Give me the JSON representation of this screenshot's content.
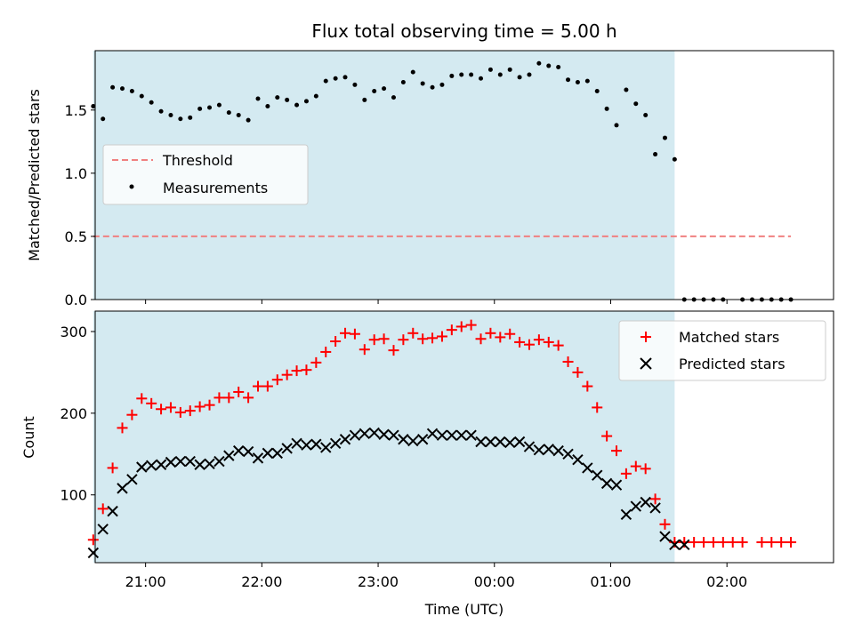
{
  "figure": {
    "title": "Flux total observing time = 5.00 h",
    "xlabel": "Time (UTC)"
  },
  "chart_data": [
    {
      "type": "scatter",
      "ylabel": "Matched/Predicted stars",
      "xlim": [
        "20:34",
        "02:55"
      ],
      "ylim": [
        0,
        1.97
      ],
      "yticks": [
        0.0,
        0.5,
        1.0,
        1.5
      ],
      "ytick_labels": [
        "0.0",
        "0.5",
        "1.0",
        "1.5"
      ],
      "shaded_interval": {
        "start": "20:33",
        "end": "01:33",
        "color": "#d4eaf1"
      },
      "legend": {
        "placement": "center-left"
      },
      "series": [
        {
          "name": "Threshold",
          "kind": "dashed-line",
          "color": "#f08080",
          "x": [
            "20:33",
            "02:33"
          ],
          "y": [
            0.5,
            0.5
          ]
        },
        {
          "name": "Measurements",
          "kind": "dots",
          "color": "#000000",
          "x": [
            "20:33",
            "20:38",
            "20:43",
            "20:48",
            "20:53",
            "20:58",
            "21:03",
            "21:08",
            "21:13",
            "21:18",
            "21:23",
            "21:28",
            "21:33",
            "21:38",
            "21:43",
            "21:48",
            "21:53",
            "21:58",
            "22:03",
            "22:08",
            "22:13",
            "22:18",
            "22:23",
            "22:28",
            "22:33",
            "22:38",
            "22:43",
            "22:48",
            "22:53",
            "22:58",
            "23:03",
            "23:08",
            "23:13",
            "23:18",
            "23:23",
            "23:28",
            "23:33",
            "23:38",
            "23:43",
            "23:48",
            "23:53",
            "23:58",
            "00:03",
            "00:08",
            "00:13",
            "00:18",
            "00:23",
            "00:28",
            "00:33",
            "00:38",
            "00:43",
            "00:48",
            "00:53",
            "00:58",
            "01:03",
            "01:08",
            "01:13",
            "01:18",
            "01:23",
            "01:28",
            "01:33",
            "01:38",
            "01:43",
            "01:48",
            "01:53",
            "01:58",
            "02:08",
            "02:13",
            "02:18",
            "02:23",
            "02:28",
            "02:33"
          ],
          "y": [
            1.53,
            1.43,
            1.68,
            1.67,
            1.65,
            1.61,
            1.56,
            1.49,
            1.46,
            1.43,
            1.44,
            1.51,
            1.52,
            1.54,
            1.48,
            1.46,
            1.42,
            1.59,
            1.53,
            1.6,
            1.58,
            1.54,
            1.57,
            1.61,
            1.73,
            1.75,
            1.76,
            1.7,
            1.58,
            1.65,
            1.67,
            1.6,
            1.72,
            1.8,
            1.71,
            1.68,
            1.7,
            1.77,
            1.78,
            1.78,
            1.75,
            1.82,
            1.78,
            1.82,
            1.76,
            1.78,
            1.87,
            1.85,
            1.84,
            1.74,
            1.72,
            1.73,
            1.65,
            1.51,
            1.38,
            1.66,
            1.55,
            1.46,
            1.15,
            1.28,
            1.11,
            0.0,
            0.0,
            0.0,
            0.0,
            0.0,
            0.0,
            0.0,
            0.0,
            0.0,
            0.0,
            0.0
          ]
        }
      ]
    },
    {
      "type": "scatter",
      "ylabel": "Count",
      "xlim": [
        "20:34",
        "02:55"
      ],
      "ylim": [
        17,
        325
      ],
      "yticks": [
        100,
        200,
        300
      ],
      "ytick_labels": [
        "100",
        "200",
        "300"
      ],
      "xticks": [
        "21:00",
        "22:00",
        "23:00",
        "00:00",
        "01:00",
        "02:00"
      ],
      "xtick_labels": [
        "21:00",
        "22:00",
        "23:00",
        "00:00",
        "01:00",
        "02:00"
      ],
      "shaded_interval": {
        "start": "20:33",
        "end": "01:33",
        "color": "#d4eaf1"
      },
      "legend": {
        "placement": "top-right"
      },
      "series": [
        {
          "name": "Matched stars",
          "kind": "plus",
          "color": "#ff0000",
          "x": [
            "20:33",
            "20:38",
            "20:43",
            "20:48",
            "20:53",
            "20:58",
            "21:03",
            "21:08",
            "21:13",
            "21:18",
            "21:23",
            "21:28",
            "21:33",
            "21:38",
            "21:43",
            "21:48",
            "21:53",
            "21:58",
            "22:03",
            "22:08",
            "22:13",
            "22:18",
            "22:23",
            "22:28",
            "22:33",
            "22:38",
            "22:43",
            "22:48",
            "22:53",
            "22:58",
            "23:03",
            "23:08",
            "23:13",
            "23:18",
            "23:23",
            "23:28",
            "23:33",
            "23:38",
            "23:43",
            "23:48",
            "23:53",
            "23:58",
            "00:03",
            "00:08",
            "00:13",
            "00:18",
            "00:23",
            "00:28",
            "00:33",
            "00:38",
            "00:43",
            "00:48",
            "00:53",
            "00:58",
            "01:03",
            "01:08",
            "01:13",
            "01:18",
            "01:23",
            "01:28",
            "01:33",
            "01:38",
            "01:43",
            "01:48",
            "01:53",
            "01:58",
            "02:03",
            "02:08",
            "02:18",
            "02:23",
            "02:28",
            "02:33"
          ],
          "y": [
            45,
            83,
            133,
            182,
            198,
            218,
            212,
            205,
            207,
            201,
            203,
            208,
            210,
            219,
            219,
            226,
            219,
            233,
            233,
            241,
            247,
            252,
            253,
            262,
            275,
            288,
            298,
            297,
            278,
            290,
            291,
            277,
            290,
            298,
            291,
            292,
            294,
            302,
            306,
            308,
            291,
            298,
            293,
            297,
            287,
            284,
            290,
            287,
            283,
            263,
            250,
            233,
            207,
            172,
            154,
            126,
            135,
            132,
            95,
            64,
            42,
            42,
            42,
            42,
            42,
            42,
            42,
            42,
            42,
            42,
            42,
            42
          ]
        },
        {
          "name": "Predicted stars",
          "kind": "x",
          "color": "#000000",
          "x": [
            "20:33",
            "20:38",
            "20:43",
            "20:48",
            "20:53",
            "20:58",
            "21:03",
            "21:08",
            "21:13",
            "21:18",
            "21:23",
            "21:28",
            "21:33",
            "21:38",
            "21:43",
            "21:48",
            "21:53",
            "21:58",
            "22:03",
            "22:08",
            "22:13",
            "22:18",
            "22:23",
            "22:28",
            "22:33",
            "22:38",
            "22:43",
            "22:48",
            "22:53",
            "22:58",
            "23:03",
            "23:08",
            "23:13",
            "23:18",
            "23:23",
            "23:28",
            "23:33",
            "23:38",
            "23:43",
            "23:48",
            "23:53",
            "23:58",
            "00:03",
            "00:08",
            "00:13",
            "00:18",
            "00:23",
            "00:28",
            "00:33",
            "00:38",
            "00:43",
            "00:48",
            "00:53",
            "00:58",
            "01:03",
            "01:08",
            "01:13",
            "01:18",
            "01:23",
            "01:28",
            "01:33",
            "01:38"
          ],
          "y": [
            29,
            58,
            80,
            108,
            119,
            134,
            136,
            137,
            140,
            141,
            141,
            137,
            138,
            141,
            148,
            154,
            153,
            145,
            151,
            151,
            157,
            163,
            161,
            162,
            158,
            163,
            168,
            173,
            175,
            176,
            174,
            173,
            168,
            166,
            168,
            175,
            173,
            173,
            173,
            173,
            165,
            165,
            165,
            164,
            165,
            159,
            155,
            156,
            154,
            150,
            143,
            133,
            124,
            114,
            112,
            76,
            86,
            91,
            84,
            49,
            39,
            39
          ]
        }
      ]
    }
  ]
}
